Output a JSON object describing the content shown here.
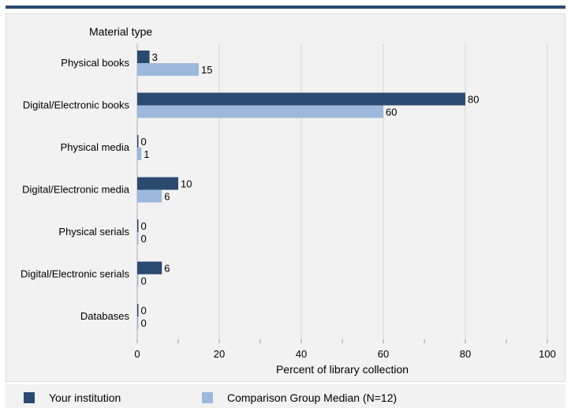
{
  "colors": {
    "your_institution": "#2b4a70",
    "comparison_median": "#9cb9dc",
    "grid": "#d4d4d4",
    "panel": "#f2f2f2"
  },
  "chart_data": {
    "type": "bar",
    "orientation": "horizontal",
    "category_axis_title": "Material type",
    "xlabel": "Percent of library collection",
    "xlim": [
      0,
      100
    ],
    "xticks": [
      0,
      20,
      40,
      60,
      80,
      100
    ],
    "grid": true,
    "legend_position": "bottom",
    "categories": [
      "Physical books",
      "Digital/Electronic books",
      "Physical media",
      "Digital/Electronic media",
      "Physical serials",
      "Digital/Electronic serials",
      "Databases"
    ],
    "series": [
      {
        "name": "Your institution",
        "values": [
          3,
          80,
          0,
          10,
          0,
          6,
          0
        ]
      },
      {
        "name": "Comparison Group Median (N=12)",
        "values": [
          15,
          60,
          1,
          6,
          0,
          0,
          0
        ]
      }
    ]
  }
}
